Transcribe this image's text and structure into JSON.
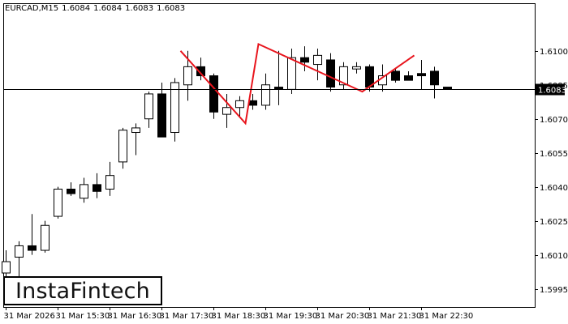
{
  "header": {
    "symbol": "EURCAD,M15",
    "open": "1.6084",
    "high": "1.6084",
    "low": "1.6083",
    "close": "1.6083"
  },
  "logo": {
    "text": "InstaFintech"
  },
  "colors": {
    "pattern": "#e8141c",
    "bull_fill": "#ffffff",
    "bear_fill": "#000000",
    "candle_outline": "#000000",
    "price_line": "#000000",
    "price_tag": "#000000"
  },
  "chart_data": {
    "type": "candlestick",
    "title": "",
    "xlabel": "",
    "ylabel": "",
    "ylim": [
      1.5987,
      1.6121
    ],
    "y_ticks": [
      "1.6100",
      "1.6085",
      "1.6070",
      "1.6055",
      "1.6040",
      "1.6025",
      "1.6010",
      "1.5995"
    ],
    "x_ticks": [
      {
        "index": 0,
        "label": "31 Mar 2026"
      },
      {
        "index": 4,
        "label": "31 Mar 15:30"
      },
      {
        "index": 8,
        "label": "31 Mar 16:30"
      },
      {
        "index": 12,
        "label": "31 Mar 17:30"
      },
      {
        "index": 16,
        "label": "31 Mar 18:30"
      },
      {
        "index": 20,
        "label": "31 Mar 19:30"
      },
      {
        "index": 24,
        "label": "31 Mar 20:30"
      },
      {
        "index": 28,
        "label": "31 Mar 21:30"
      },
      {
        "index": 32,
        "label": "31 Mar 22:30"
      }
    ],
    "current_price": {
      "value": 1.6083,
      "label": "1.6083"
    },
    "pattern_line": [
      {
        "x": 13.5,
        "y": 1.61
      },
      {
        "x": 18.5,
        "y": 1.6068
      },
      {
        "x": 19.5,
        "y": 1.6103
      },
      {
        "x": 27.5,
        "y": 1.6082
      },
      {
        "x": 31.5,
        "y": 1.6098
      }
    ],
    "candles": [
      {
        "o": 1.6002,
        "h": 1.6012,
        "l": 1.5995,
        "c": 1.6007
      },
      {
        "o": 1.6009,
        "h": 1.6016,
        "l": 1.6,
        "c": 1.6014
      },
      {
        "o": 1.6014,
        "h": 1.6028,
        "l": 1.601,
        "c": 1.6012
      },
      {
        "o": 1.6012,
        "h": 1.6025,
        "l": 1.6011,
        "c": 1.6023
      },
      {
        "o": 1.6027,
        "h": 1.604,
        "l": 1.6026,
        "c": 1.6039
      },
      {
        "o": 1.6039,
        "h": 1.6042,
        "l": 1.6036,
        "c": 1.6037
      },
      {
        "o": 1.6035,
        "h": 1.6044,
        "l": 1.6033,
        "c": 1.6041
      },
      {
        "o": 1.6041,
        "h": 1.6046,
        "l": 1.6035,
        "c": 1.6038
      },
      {
        "o": 1.6039,
        "h": 1.6051,
        "l": 1.6036,
        "c": 1.6045
      },
      {
        "o": 1.6051,
        "h": 1.6066,
        "l": 1.6048,
        "c": 1.6065
      },
      {
        "o": 1.6064,
        "h": 1.6068,
        "l": 1.6054,
        "c": 1.6066
      },
      {
        "o": 1.607,
        "h": 1.6082,
        "l": 1.6066,
        "c": 1.6081
      },
      {
        "o": 1.6081,
        "h": 1.6086,
        "l": 1.6062,
        "c": 1.6062
      },
      {
        "o": 1.6064,
        "h": 1.6088,
        "l": 1.606,
        "c": 1.6086
      },
      {
        "o": 1.6085,
        "h": 1.61,
        "l": 1.6078,
        "c": 1.6093
      },
      {
        "o": 1.6093,
        "h": 1.6097,
        "l": 1.6087,
        "c": 1.6089
      },
      {
        "o": 1.6089,
        "h": 1.609,
        "l": 1.607,
        "c": 1.6073
      },
      {
        "o": 1.6072,
        "h": 1.6081,
        "l": 1.6066,
        "c": 1.6075
      },
      {
        "o": 1.6075,
        "h": 1.608,
        "l": 1.6071,
        "c": 1.6078
      },
      {
        "o": 1.6078,
        "h": 1.6081,
        "l": 1.6074,
        "c": 1.6076
      },
      {
        "o": 1.6076,
        "h": 1.609,
        "l": 1.6074,
        "c": 1.6085
      },
      {
        "o": 1.6084,
        "h": 1.61,
        "l": 1.6076,
        "c": 1.6083
      },
      {
        "o": 1.6083,
        "h": 1.6101,
        "l": 1.6081,
        "c": 1.6097
      },
      {
        "o": 1.6097,
        "h": 1.6102,
        "l": 1.6091,
        "c": 1.6095
      },
      {
        "o": 1.6094,
        "h": 1.6101,
        "l": 1.6087,
        "c": 1.6098
      },
      {
        "o": 1.6096,
        "h": 1.6099,
        "l": 1.6082,
        "c": 1.6084
      },
      {
        "o": 1.6085,
        "h": 1.6095,
        "l": 1.6083,
        "c": 1.6093
      },
      {
        "o": 1.6092,
        "h": 1.6095,
        "l": 1.609,
        "c": 1.6093
      },
      {
        "o": 1.6093,
        "h": 1.6094,
        "l": 1.6082,
        "c": 1.6084
      },
      {
        "o": 1.6085,
        "h": 1.6094,
        "l": 1.6082,
        "c": 1.6089
      },
      {
        "o": 1.6091,
        "h": 1.6092,
        "l": 1.6086,
        "c": 1.6087
      },
      {
        "o": 1.6089,
        "h": 1.6091,
        "l": 1.6087,
        "c": 1.6087
      },
      {
        "o": 1.609,
        "h": 1.6096,
        "l": 1.6083,
        "c": 1.6089
      },
      {
        "o": 1.6091,
        "h": 1.6093,
        "l": 1.6079,
        "c": 1.6085
      },
      {
        "o": 1.6084,
        "h": 1.6084,
        "l": 1.6083,
        "c": 1.6083
      }
    ]
  }
}
